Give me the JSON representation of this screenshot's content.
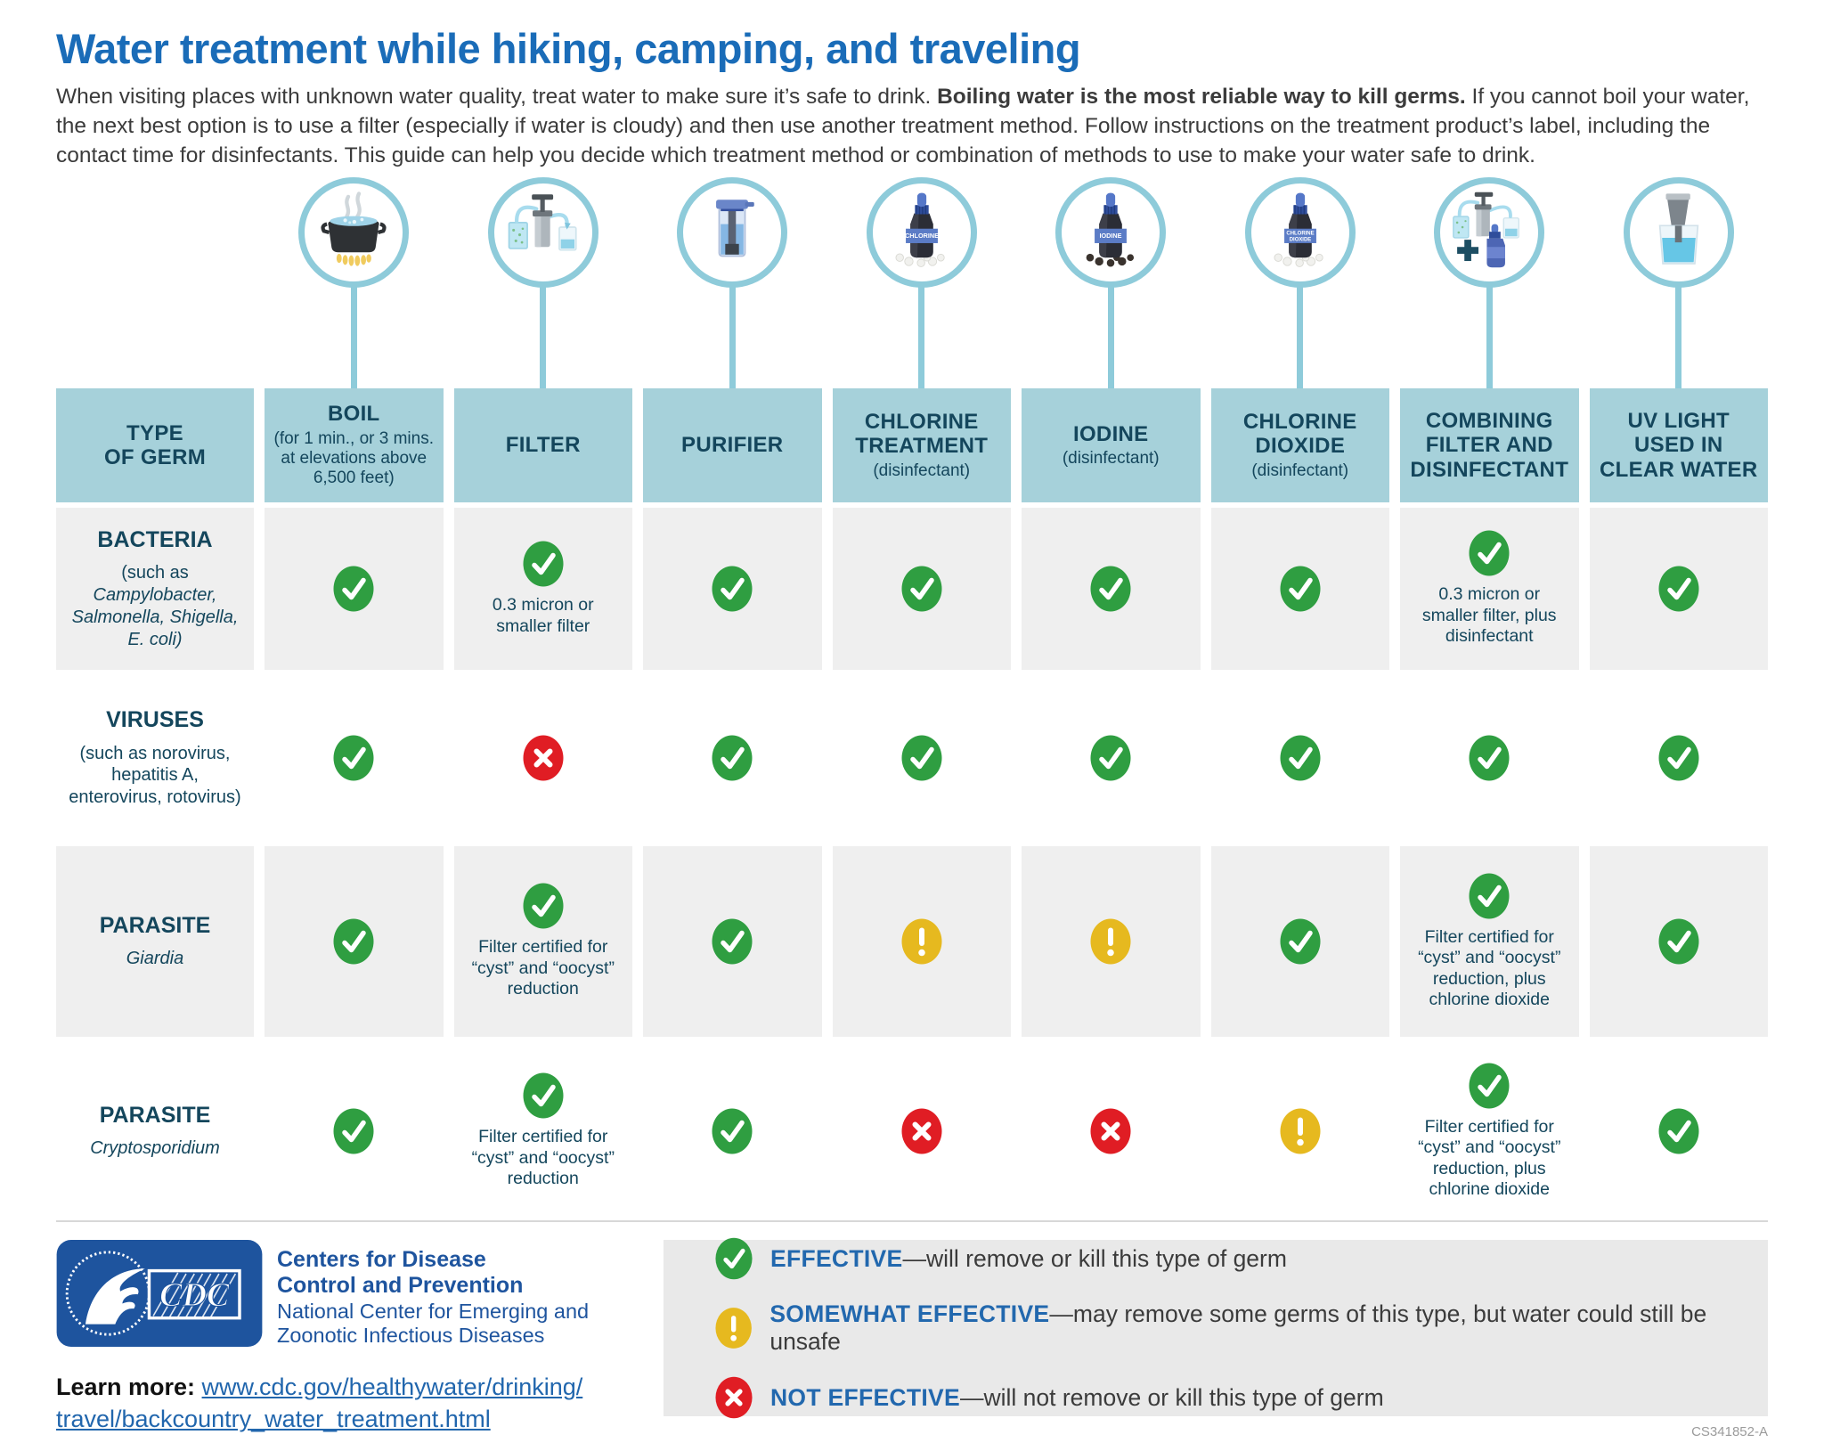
{
  "page": {
    "title": "Water treatment while hiking, camping, and traveling",
    "intro_before_bold": "When visiting places with unknown water quality, treat water to make sure it’s safe to drink. ",
    "intro_bold": "Boiling water is the most reliable way to kill germs.",
    "intro_after_bold": " If you cannot boil your water, the next best option is to use a filter (especially if water is cloudy) and then use another treatment method. Follow instructions on the treatment product’s label, including the contact time for disinfectants. This guide can help you decide which treatment method or combination of methods to use to make your water safe to drink.",
    "doc_id": "CS341852-A"
  },
  "colors": {
    "title_blue": "#1a6cb8",
    "header_teal": "#a6d1da",
    "dark_teal_text": "#14465c",
    "row_gray": "#efefef",
    "effective_green": "#2f9e41",
    "somewhat_yellow": "#e6b91f",
    "not_red": "#e01d24",
    "legend_term_blue": "#2268ae",
    "cdc_logo_blue": "#1e549e",
    "circle_stroke": "#8ecbda",
    "link_blue": "#2166ad",
    "legend_box_gray": "#e9e9e9"
  },
  "table": {
    "corner_label_lines": [
      "TYPE",
      "OF GERM"
    ],
    "columns": [
      {
        "id": "boil",
        "icon": "boiling-pot-icon",
        "title": "BOIL",
        "subtitle": "(for 1 min., or 3 mins. at elevations above 6,500 feet)"
      },
      {
        "id": "filter",
        "icon": "filter-pump-icon",
        "title": "FILTER",
        "subtitle": ""
      },
      {
        "id": "purifier",
        "icon": "purifier-icon",
        "title": "PURIFIER",
        "subtitle": ""
      },
      {
        "id": "chlorine",
        "icon": "chlorine-bottle-icon",
        "title": "CHLORINE TREATMENT",
        "subtitle": "(disinfectant)"
      },
      {
        "id": "iodine",
        "icon": "iodine-bottle-icon",
        "title": "IODINE",
        "subtitle": "(disinfectant)"
      },
      {
        "id": "chlorine-dioxide",
        "icon": "chlorine-dioxide-bottle-icon",
        "title": "CHLORINE DIOXIDE",
        "subtitle": "(disinfectant)"
      },
      {
        "id": "combining",
        "icon": "filter-plus-disinfectant-icon",
        "title": "COMBINING FILTER AND DISINFECTANT",
        "subtitle": ""
      },
      {
        "id": "uv",
        "icon": "uv-light-icon",
        "title": "UV LIGHT USED IN CLEAR WATER",
        "subtitle": ""
      }
    ],
    "rows": [
      {
        "id": "bacteria",
        "name": "BACTERIA",
        "subtitle_plain": "(such as",
        "subtitle_italic": "Campylobacter, Salmonella, Shigella, E. coli)",
        "shade": true,
        "cells": [
          {
            "status": "effective"
          },
          {
            "status": "effective",
            "note": "0.3 micron or smaller filter"
          },
          {
            "status": "effective"
          },
          {
            "status": "effective"
          },
          {
            "status": "effective"
          },
          {
            "status": "effective"
          },
          {
            "status": "effective",
            "note": "0.3 micron or smaller filter, plus disinfectant"
          },
          {
            "status": "effective"
          }
        ]
      },
      {
        "id": "viruses",
        "name": "VIRUSES",
        "subtitle_plain": "(such as norovirus, hepatitis A, enterovirus, rotovirus)",
        "subtitle_italic": "",
        "shade": false,
        "cells": [
          {
            "status": "effective"
          },
          {
            "status": "not_effective"
          },
          {
            "status": "effective"
          },
          {
            "status": "effective"
          },
          {
            "status": "effective"
          },
          {
            "status": "effective"
          },
          {
            "status": "effective"
          },
          {
            "status": "effective"
          }
        ]
      },
      {
        "id": "giardia",
        "name": "PARASITE",
        "subtitle_plain": "",
        "subtitle_italic": "Giardia",
        "shade": true,
        "cells": [
          {
            "status": "effective"
          },
          {
            "status": "effective",
            "note": "Filter certified for “cyst” and “oocyst” reduction"
          },
          {
            "status": "effective"
          },
          {
            "status": "somewhat_effective"
          },
          {
            "status": "somewhat_effective"
          },
          {
            "status": "effective"
          },
          {
            "status": "effective",
            "note": "Filter certified for “cyst” and “oocyst” reduction, plus chlorine dioxide"
          },
          {
            "status": "effective"
          }
        ]
      },
      {
        "id": "cryptosporidium",
        "name": "PARASITE",
        "subtitle_plain": "",
        "subtitle_italic": "Cryptosporidium",
        "shade": false,
        "cells": [
          {
            "status": "effective"
          },
          {
            "status": "effective",
            "note": "Filter certified for “cyst” and “oocyst” reduction"
          },
          {
            "status": "effective"
          },
          {
            "status": "not_effective"
          },
          {
            "status": "not_effective"
          },
          {
            "status": "somewhat_effective"
          },
          {
            "status": "effective",
            "note": "Filter certified for “cyst” and “oocyst” reduction, plus chlorine dioxide"
          },
          {
            "status": "effective"
          }
        ]
      }
    ]
  },
  "legend": {
    "items": [
      {
        "status": "effective",
        "term": "EFFECTIVE",
        "desc": "—will remove or kill this type of germ"
      },
      {
        "status": "somewhat_effective",
        "term": "SOMEWHAT EFFECTIVE",
        "desc": "—may remove some germs of this type, but water could still be unsafe"
      },
      {
        "status": "not_effective",
        "term": "NOT EFFECTIVE",
        "desc": "—will not remove or kill this type of germ"
      }
    ]
  },
  "footer": {
    "cdc_logo_letters": "CDC",
    "org_bold_lines": [
      "Centers for Disease",
      "Control and Prevention"
    ],
    "org_regular_lines": [
      "National Center for Emerging and",
      "Zoonotic Infectious Diseases"
    ],
    "learn_more_label": "Learn more: ",
    "url_line1": "www.cdc.gov/healthywater/drinking/",
    "url_line2": "travel/backcountry_water_treatment.html"
  }
}
